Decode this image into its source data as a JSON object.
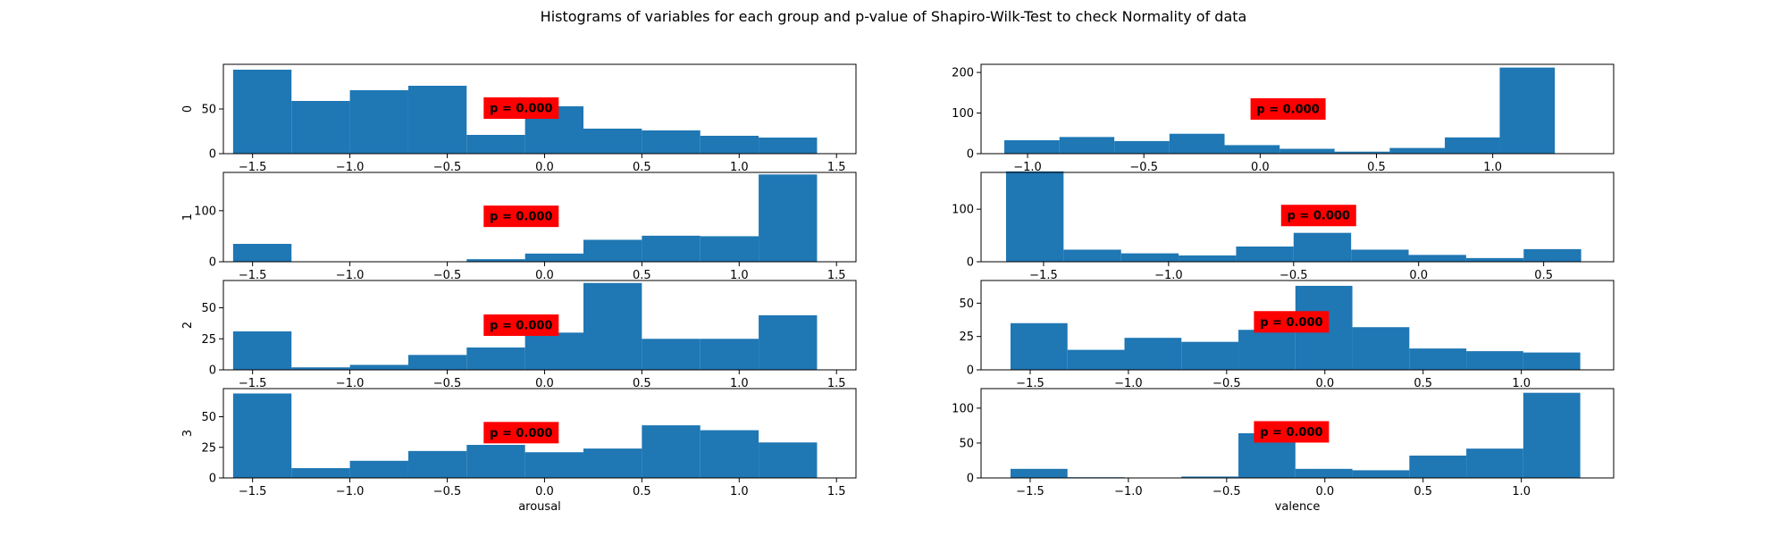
{
  "figure": {
    "title": "Histograms of variables for each group and p-value of Shapiro-Wilk-Test to check Normality of data",
    "background": "#ffffff",
    "bar_color": "#1f77b4",
    "badge_color": "#ff0000"
  },
  "chart_data": [
    {
      "type": "bar",
      "row": 0,
      "col": 0,
      "ylabel": "0",
      "xlabel": "",
      "xlim": [
        -1.65,
        1.6
      ],
      "ylim": [
        0,
        100
      ],
      "xticks": [
        -1.5,
        -1.0,
        -0.5,
        0.0,
        0.5,
        1.0,
        1.5
      ],
      "xtick_labels": [
        "−1.5",
        "−1.0",
        "−0.5",
        "0.0",
        "0.5",
        "1.0",
        "1.5"
      ],
      "yticks": [
        0,
        50
      ],
      "ytick_labels": [
        "0",
        "50"
      ],
      "bins": [
        [
          -1.6,
          -1.3
        ],
        [
          -1.3,
          -1.0
        ],
        [
          -1.0,
          -0.7
        ],
        [
          -0.7,
          -0.4
        ],
        [
          -0.4,
          -0.1
        ],
        [
          -0.1,
          0.2
        ],
        [
          0.2,
          0.5
        ],
        [
          0.5,
          0.8
        ],
        [
          0.8,
          1.1
        ],
        [
          1.1,
          1.4
        ]
      ],
      "values": [
        94,
        59,
        71,
        76,
        21,
        53,
        28,
        26,
        20,
        18
      ],
      "annotation": "p = 0.000",
      "annotation_x": -0.12,
      "annotation_y": 51
    },
    {
      "type": "bar",
      "row": 0,
      "col": 1,
      "ylabel": "",
      "xlabel": "",
      "xlim": [
        -1.2,
        1.52
      ],
      "ylim": [
        0,
        220
      ],
      "xticks": [
        -1.0,
        -0.5,
        0.0,
        0.5,
        1.0
      ],
      "xtick_labels": [
        "−1.0",
        "−0.5",
        "0.0",
        "0.5",
        "1.0"
      ],
      "yticks": [
        0,
        100,
        200
      ],
      "ytick_labels": [
        "0",
        "100",
        "200"
      ],
      "bins": [
        [
          -1.1,
          -0.863
        ],
        [
          -0.863,
          -0.627
        ],
        [
          -0.627,
          -0.39
        ],
        [
          -0.39,
          -0.153
        ],
        [
          -0.153,
          0.084
        ],
        [
          0.084,
          0.32
        ],
        [
          0.32,
          0.557
        ],
        [
          0.557,
          0.794
        ],
        [
          0.794,
          1.03
        ],
        [
          1.03,
          1.267
        ]
      ],
      "values": [
        33,
        41,
        31,
        49,
        21,
        12,
        5,
        14,
        40,
        212
      ],
      "annotation": "p = 0.000",
      "annotation_x": 0.12,
      "annotation_y": 110
    },
    {
      "type": "bar",
      "row": 1,
      "col": 0,
      "ylabel": "1",
      "xlabel": "",
      "xlim": [
        -1.65,
        1.6
      ],
      "ylim": [
        0,
        175
      ],
      "xticks": [
        -1.5,
        -1.0,
        -0.5,
        0.0,
        0.5,
        1.0,
        1.5
      ],
      "xtick_labels": [
        "−1.5",
        "−1.0",
        "−0.5",
        "0.0",
        "0.5",
        "1.0",
        "1.5"
      ],
      "yticks": [
        0,
        100
      ],
      "ytick_labels": [
        "0",
        "100"
      ],
      "bins": [
        [
          -1.6,
          -1.3
        ],
        [
          -1.3,
          -1.0
        ],
        [
          -1.0,
          -0.7
        ],
        [
          -0.7,
          -0.4
        ],
        [
          -0.4,
          -0.1
        ],
        [
          -0.1,
          0.2
        ],
        [
          0.2,
          0.5
        ],
        [
          0.5,
          0.8
        ],
        [
          0.8,
          1.1
        ],
        [
          1.1,
          1.4
        ]
      ],
      "values": [
        35,
        0,
        0,
        0,
        5,
        16,
        43,
        51,
        50,
        171
      ],
      "annotation": "p = 0.000",
      "annotation_x": -0.12,
      "annotation_y": 89
    },
    {
      "type": "bar",
      "row": 1,
      "col": 1,
      "ylabel": "",
      "xlabel": "",
      "xlim": [
        -1.75,
        0.78
      ],
      "ylim": [
        0,
        170
      ],
      "xticks": [
        -1.5,
        -1.0,
        -0.5,
        0.0,
        0.5
      ],
      "xtick_labels": [
        "−1.5",
        "−1.0",
        "−0.5",
        "0.0",
        "0.5"
      ],
      "yticks": [
        0,
        100
      ],
      "ytick_labels": [
        "0",
        "100"
      ],
      "bins": [
        [
          -1.65,
          -1.42
        ],
        [
          -1.42,
          -1.19
        ],
        [
          -1.19,
          -0.96
        ],
        [
          -0.96,
          -0.73
        ],
        [
          -0.73,
          -0.5
        ],
        [
          -0.5,
          -0.27
        ],
        [
          -0.27,
          -0.04
        ],
        [
          -0.04,
          0.19
        ],
        [
          0.19,
          0.42
        ],
        [
          0.42,
          0.65
        ]
      ],
      "values": [
        172,
        23,
        16,
        12,
        29,
        55,
        23,
        13,
        7,
        24
      ],
      "annotation": "p = 0.000",
      "annotation_x": -0.4,
      "annotation_y": 88
    },
    {
      "type": "bar",
      "row": 2,
      "col": 0,
      "ylabel": "2",
      "xlabel": "",
      "xlim": [
        -1.65,
        1.6
      ],
      "ylim": [
        0,
        72
      ],
      "xticks": [
        -1.5,
        -1.0,
        -0.5,
        0.0,
        0.5,
        1.0,
        1.5
      ],
      "xtick_labels": [
        "−1.5",
        "−1.0",
        "−0.5",
        "0.0",
        "0.5",
        "1.0",
        "1.5"
      ],
      "yticks": [
        0,
        25,
        50
      ],
      "ytick_labels": [
        "0",
        "25",
        "50"
      ],
      "bins": [
        [
          -1.6,
          -1.3
        ],
        [
          -1.3,
          -1.0
        ],
        [
          -1.0,
          -0.7
        ],
        [
          -0.7,
          -0.4
        ],
        [
          -0.4,
          -0.1
        ],
        [
          -0.1,
          0.2
        ],
        [
          0.2,
          0.5
        ],
        [
          0.5,
          0.8
        ],
        [
          0.8,
          1.1
        ],
        [
          1.1,
          1.4
        ]
      ],
      "values": [
        31,
        2,
        4,
        12,
        18,
        30,
        70,
        25,
        25,
        44
      ],
      "annotation": "p = 0.000",
      "annotation_x": -0.12,
      "annotation_y": 36
    },
    {
      "type": "bar",
      "row": 2,
      "col": 1,
      "ylabel": "",
      "xlabel": "",
      "xlim": [
        -1.75,
        1.47
      ],
      "ylim": [
        0,
        67
      ],
      "xticks": [
        -1.5,
        -1.0,
        -0.5,
        0.0,
        0.5,
        1.0
      ],
      "xtick_labels": [
        "−1.5",
        "−1.0",
        "−0.5",
        "0.0",
        "0.5",
        "1.0"
      ],
      "yticks": [
        0,
        25,
        50
      ],
      "ytick_labels": [
        "0",
        "25",
        "50"
      ],
      "bins": [
        [
          -1.6,
          -1.31
        ],
        [
          -1.31,
          -1.02
        ],
        [
          -1.02,
          -0.73
        ],
        [
          -0.73,
          -0.44
        ],
        [
          -0.44,
          -0.15
        ],
        [
          -0.15,
          0.14
        ],
        [
          0.14,
          0.43
        ],
        [
          0.43,
          0.72
        ],
        [
          0.72,
          1.01
        ],
        [
          1.01,
          1.3
        ]
      ],
      "values": [
        35,
        15,
        24,
        21,
        30,
        63,
        32,
        16,
        14,
        13
      ],
      "annotation": "p = 0.000",
      "annotation_x": -0.17,
      "annotation_y": 36
    },
    {
      "type": "bar",
      "row": 3,
      "col": 0,
      "ylabel": "3",
      "xlabel": "arousal",
      "xlim": [
        -1.65,
        1.6
      ],
      "ylim": [
        0,
        73
      ],
      "xticks": [
        -1.5,
        -1.0,
        -0.5,
        0.0,
        0.5,
        1.0,
        1.5
      ],
      "xtick_labels": [
        "−1.5",
        "−1.0",
        "−0.5",
        "0.0",
        "0.5",
        "1.0",
        "1.5"
      ],
      "yticks": [
        0,
        25,
        50
      ],
      "ytick_labels": [
        "0",
        "25",
        "50"
      ],
      "bins": [
        [
          -1.6,
          -1.3
        ],
        [
          -1.3,
          -1.0
        ],
        [
          -1.0,
          -0.7
        ],
        [
          -0.7,
          -0.4
        ],
        [
          -0.4,
          -0.1
        ],
        [
          -0.1,
          0.2
        ],
        [
          0.2,
          0.5
        ],
        [
          0.5,
          0.8
        ],
        [
          0.8,
          1.1
        ],
        [
          1.1,
          1.4
        ]
      ],
      "values": [
        69,
        8,
        14,
        22,
        27,
        21,
        24,
        43,
        39,
        29
      ],
      "annotation": "p = 0.000",
      "annotation_x": -0.12,
      "annotation_y": 37
    },
    {
      "type": "bar",
      "row": 3,
      "col": 1,
      "ylabel": "",
      "xlabel": "valence",
      "xlim": [
        -1.75,
        1.47
      ],
      "ylim": [
        0,
        128
      ],
      "xticks": [
        -1.5,
        -1.0,
        -0.5,
        0.0,
        0.5,
        1.0
      ],
      "xtick_labels": [
        "−1.5",
        "−1.0",
        "−0.5",
        "0.0",
        "0.5",
        "1.0"
      ],
      "yticks": [
        0,
        50,
        100
      ],
      "ytick_labels": [
        "0",
        "50",
        "100"
      ],
      "bins": [
        [
          -1.6,
          -1.31
        ],
        [
          -1.31,
          -1.02
        ],
        [
          -1.02,
          -0.73
        ],
        [
          -0.73,
          -0.44
        ],
        [
          -0.44,
          -0.15
        ],
        [
          -0.15,
          0.14
        ],
        [
          0.14,
          0.43
        ],
        [
          0.43,
          0.72
        ],
        [
          0.72,
          1.01
        ],
        [
          1.01,
          1.3
        ]
      ],
      "values": [
        13,
        1,
        0,
        2,
        64,
        13,
        11,
        32,
        42,
        122
      ],
      "annotation": "p = 0.000",
      "annotation_x": -0.17,
      "annotation_y": 66
    }
  ]
}
